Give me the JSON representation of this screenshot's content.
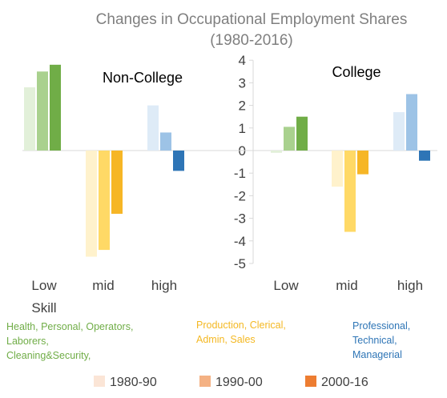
{
  "chart_data": {
    "type": "bar",
    "title": "Changes in Occupational Employment Shares",
    "subtitle": "(1980-2016)",
    "ylim": [
      -5,
      4
    ],
    "y_ticks": [
      "-5",
      "-4",
      "-3",
      "-2",
      "-1",
      "0",
      "1",
      "2",
      "3",
      "4"
    ],
    "grid": false,
    "legend_position": "bottom",
    "legend": [
      "1980-90",
      "1990-00",
      "2000-16"
    ],
    "categories": [
      "Low",
      "mid",
      "high"
    ],
    "low_category_subtitle": "Skill",
    "panels": [
      {
        "name": "Non-College",
        "series": [
          {
            "name": "1980-90",
            "values": [
              2.8,
              -4.7,
              2.0
            ]
          },
          {
            "name": "1990-00",
            "values": [
              3.5,
              -4.4,
              0.8
            ]
          },
          {
            "name": "2000-16",
            "values": [
              3.8,
              -2.8,
              -0.9
            ]
          }
        ]
      },
      {
        "name": "College",
        "series": [
          {
            "name": "1980-90",
            "values": [
              -0.1,
              -1.6,
              1.7
            ]
          },
          {
            "name": "1990-00",
            "values": [
              1.05,
              -3.6,
              2.5
            ]
          },
          {
            "name": "2000-16",
            "values": [
              1.5,
              -1.05,
              -0.45
            ]
          }
        ]
      }
    ],
    "category_notes": [
      {
        "lines": [
          "Health, Personal, Operators,",
          "Laborers,",
          "Cleaning&Security,"
        ]
      },
      {
        "lines": [
          "Production, Clerical,",
          "Admin, Sales"
        ]
      },
      {
        "lines": [
          "Professional,",
          "Technical,",
          "Managerial"
        ]
      }
    ],
    "colors": {
      "low": [
        "#e2f0d9",
        "#a9d18e",
        "#70ad47"
      ],
      "mid": [
        "#fff2cc",
        "#ffd966",
        "#f4b183"
      ],
      "mid_2000": "#f6b626",
      "high": [
        "#deebf7",
        "#9dc3e6",
        "#2e75b6"
      ],
      "legend": [
        "#fbe5d6",
        "#f4b183",
        "#ed7d31"
      ],
      "note_low": "#70ad47",
      "note_mid": "#f4b822",
      "note_high": "#2e75b6",
      "title": "#7f7f7f",
      "text": "#404040",
      "axis": "#d9d9d9"
    }
  }
}
